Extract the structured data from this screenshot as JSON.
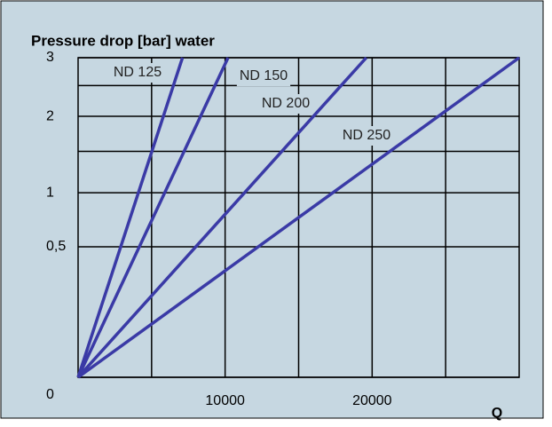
{
  "chart_data": {
    "type": "line",
    "title": "Pressure drop [bar] water",
    "x_label": "Q",
    "yscale": "sqrt",
    "grid": true,
    "xlim": [
      0,
      30000
    ],
    "xticks": [
      10000,
      20000
    ],
    "xminor": [
      5000,
      15000,
      25000
    ],
    "ylim": [
      0,
      3
    ],
    "yticks": [
      0,
      {
        "value": 0.5,
        "label": "0,5"
      },
      1,
      2,
      3
    ],
    "yminor": [
      1.5,
      2.5
    ],
    "series": [
      {
        "name": "ND 125",
        "color": "#3a3aa6",
        "x": [
          0,
          7100
        ],
        "values": [
          0,
          3
        ]
      },
      {
        "name": "ND 150",
        "color": "#3a3aa6",
        "x": [
          0,
          10200
        ],
        "values": [
          0,
          3
        ]
      },
      {
        "name": "ND 200",
        "color": "#3a3aa6",
        "x": [
          0,
          19600
        ],
        "values": [
          0,
          3
        ]
      },
      {
        "name": "ND 250",
        "color": "#3a3aa6",
        "x": [
          0,
          30000
        ],
        "values": [
          0,
          3
        ]
      }
    ]
  }
}
